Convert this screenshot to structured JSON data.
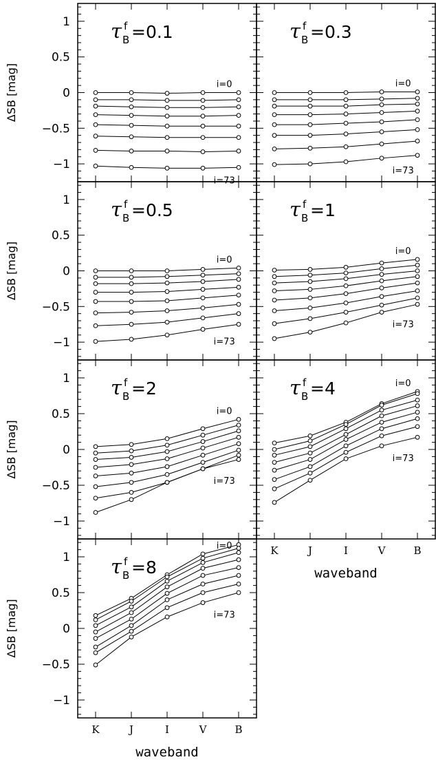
{
  "figure": {
    "ylabel": "ΔSB  [mag]",
    "xlabel": "waveband",
    "tau_symbol": "τ",
    "tau_sub": "B",
    "tau_sup": "f",
    "inclination_top_label": "i=0",
    "inclination_bottom_label": "i=73"
  },
  "chart_data": [
    {
      "type": "line",
      "panel": "tau_0.1",
      "tau_value": "=0.1",
      "categories": [
        "K",
        "J",
        "I",
        "V",
        "B"
      ],
      "ylim": [
        -1.25,
        1.25
      ],
      "yticks": [
        1,
        0.5,
        0,
        -0.5,
        -1
      ],
      "ytick_labels": [
        "1",
        "0.5",
        "0",
        "−0.5",
        "−1"
      ],
      "series": [
        {
          "values": [
            0.0,
            0.0,
            -0.01,
            0.0,
            0.0
          ]
        },
        {
          "values": [
            -0.1,
            -0.1,
            -0.11,
            -0.11,
            -0.1
          ]
        },
        {
          "values": [
            -0.19,
            -0.2,
            -0.21,
            -0.21,
            -0.2
          ]
        },
        {
          "values": [
            -0.31,
            -0.32,
            -0.33,
            -0.33,
            -0.32
          ]
        },
        {
          "values": [
            -0.45,
            -0.46,
            -0.47,
            -0.47,
            -0.47
          ]
        },
        {
          "values": [
            -0.61,
            -0.62,
            -0.63,
            -0.63,
            -0.63
          ]
        },
        {
          "values": [
            -0.81,
            -0.82,
            -0.82,
            -0.83,
            -0.82
          ]
        },
        {
          "values": [
            -1.03,
            -1.05,
            -1.06,
            -1.06,
            -1.05
          ]
        }
      ]
    },
    {
      "type": "line",
      "panel": "tau_0.3",
      "tau_value": "=0.3",
      "categories": [
        "K",
        "J",
        "I",
        "V",
        "B"
      ],
      "ylim": [
        -1.25,
        1.25
      ],
      "yticks": [
        1,
        0.5,
        0,
        -0.5,
        -1
      ],
      "ytick_labels": [
        "1",
        "0.5",
        "0",
        "−0.5",
        "−1"
      ],
      "series": [
        {
          "values": [
            0.0,
            0.0,
            0.0,
            0.01,
            0.01
          ]
        },
        {
          "values": [
            -0.1,
            -0.1,
            -0.1,
            -0.09,
            -0.08
          ]
        },
        {
          "values": [
            -0.19,
            -0.19,
            -0.19,
            -0.17,
            -0.16
          ]
        },
        {
          "values": [
            -0.31,
            -0.31,
            -0.3,
            -0.28,
            -0.26
          ]
        },
        {
          "values": [
            -0.45,
            -0.45,
            -0.43,
            -0.41,
            -0.38
          ]
        },
        {
          "values": [
            -0.6,
            -0.6,
            -0.58,
            -0.55,
            -0.52
          ]
        },
        {
          "values": [
            -0.79,
            -0.78,
            -0.76,
            -0.72,
            -0.68
          ]
        },
        {
          "values": [
            -1.01,
            -1.0,
            -0.97,
            -0.92,
            -0.88
          ]
        }
      ]
    },
    {
      "type": "line",
      "panel": "tau_0.5",
      "tau_value": "=0.5",
      "categories": [
        "K",
        "J",
        "I",
        "V",
        "B"
      ],
      "ylim": [
        -1.25,
        1.25
      ],
      "yticks": [
        1,
        0.5,
        0,
        -0.5,
        -1
      ],
      "ytick_labels": [
        "1",
        "0.5",
        "0",
        "−0.5",
        "−1"
      ],
      "series": [
        {
          "values": [
            0.0,
            0.0,
            0.0,
            0.02,
            0.04
          ]
        },
        {
          "values": [
            -0.09,
            -0.09,
            -0.08,
            -0.06,
            -0.04
          ]
        },
        {
          "values": [
            -0.18,
            -0.18,
            -0.17,
            -0.15,
            -0.12
          ]
        },
        {
          "values": [
            -0.3,
            -0.3,
            -0.29,
            -0.26,
            -0.23
          ]
        },
        {
          "values": [
            -0.43,
            -0.43,
            -0.42,
            -0.38,
            -0.34
          ]
        },
        {
          "values": [
            -0.59,
            -0.58,
            -0.56,
            -0.52,
            -0.47
          ]
        },
        {
          "values": [
            -0.77,
            -0.75,
            -0.72,
            -0.66,
            -0.6
          ]
        },
        {
          "values": [
            -0.99,
            -0.96,
            -0.9,
            -0.82,
            -0.75
          ]
        }
      ]
    },
    {
      "type": "line",
      "panel": "tau_1",
      "tau_value": "=1",
      "categories": [
        "K",
        "J",
        "I",
        "V",
        "B"
      ],
      "ylim": [
        -1.25,
        1.25
      ],
      "yticks": [
        1,
        0.5,
        0,
        -0.5,
        -1
      ],
      "ytick_labels": [
        "1",
        "0.5",
        "0",
        "−0.5",
        "−1"
      ],
      "series": [
        {
          "values": [
            0.01,
            0.02,
            0.05,
            0.11,
            0.16
          ]
        },
        {
          "values": [
            -0.08,
            -0.06,
            -0.03,
            0.03,
            0.08
          ]
        },
        {
          "values": [
            -0.17,
            -0.15,
            -0.11,
            -0.05,
            0.0
          ]
        },
        {
          "values": [
            -0.28,
            -0.26,
            -0.21,
            -0.14,
            -0.08
          ]
        },
        {
          "values": [
            -0.41,
            -0.38,
            -0.32,
            -0.24,
            -0.17
          ]
        },
        {
          "values": [
            -0.56,
            -0.52,
            -0.45,
            -0.36,
            -0.28
          ]
        },
        {
          "values": [
            -0.74,
            -0.67,
            -0.58,
            -0.48,
            -0.38
          ]
        },
        {
          "values": [
            -0.95,
            -0.86,
            -0.73,
            -0.58,
            -0.47
          ]
        }
      ]
    },
    {
      "type": "line",
      "panel": "tau_2",
      "tau_value": "=2",
      "categories": [
        "K",
        "J",
        "I",
        "V",
        "B"
      ],
      "ylim": [
        -1.25,
        1.25
      ],
      "yticks": [
        1,
        0.5,
        0,
        -0.5,
        -1
      ],
      "ytick_labels": [
        "1",
        "0.5",
        "0",
        "−0.5",
        "−1"
      ],
      "series": [
        {
          "values": [
            0.04,
            0.07,
            0.15,
            0.29,
            0.42
          ]
        },
        {
          "values": [
            -0.05,
            -0.02,
            0.06,
            0.2,
            0.34
          ]
        },
        {
          "values": [
            -0.14,
            -0.11,
            -0.03,
            0.11,
            0.26
          ]
        },
        {
          "values": [
            -0.25,
            -0.21,
            -0.13,
            0.02,
            0.17
          ]
        },
        {
          "values": [
            -0.37,
            -0.33,
            -0.24,
            -0.08,
            0.08
          ]
        },
        {
          "values": [
            -0.52,
            -0.46,
            -0.35,
            -0.18,
            -0.01
          ]
        },
        {
          "values": [
            -0.68,
            -0.6,
            -0.46,
            -0.27,
            -0.08
          ]
        },
        {
          "values": [
            -0.88,
            -0.7,
            -0.46,
            -0.27,
            -0.14
          ]
        }
      ]
    },
    {
      "type": "line",
      "panel": "tau_4",
      "tau_value": "=4",
      "categories": [
        "K",
        "J",
        "I",
        "V",
        "B"
      ],
      "ylim": [
        -1.25,
        1.25
      ],
      "yticks": [
        1,
        0.5,
        0,
        -0.5,
        -1
      ],
      "ytick_labels": [
        "1",
        "0.5",
        "0",
        "−0.5",
        "−1"
      ],
      "series": [
        {
          "values": [
            0.09,
            0.19,
            0.38,
            0.64,
            0.81
          ]
        },
        {
          "values": [
            0.0,
            0.12,
            0.35,
            0.62,
            0.78
          ]
        },
        {
          "values": [
            -0.08,
            0.04,
            0.29,
            0.55,
            0.69
          ]
        },
        {
          "values": [
            -0.18,
            -0.05,
            0.21,
            0.47,
            0.61
          ]
        },
        {
          "values": [
            -0.29,
            -0.14,
            0.14,
            0.38,
            0.52
          ]
        },
        {
          "values": [
            -0.42,
            -0.24,
            0.05,
            0.29,
            0.43
          ]
        },
        {
          "values": [
            -0.55,
            -0.33,
            -0.04,
            0.19,
            0.32
          ]
        },
        {
          "values": [
            -0.74,
            -0.43,
            -0.13,
            0.05,
            0.17
          ]
        }
      ]
    },
    {
      "type": "line",
      "panel": "tau_8",
      "tau_value": "=8",
      "categories": [
        "K",
        "J",
        "I",
        "V",
        "B"
      ],
      "ylim": [
        -1.25,
        1.25
      ],
      "yticks": [
        1,
        0.5,
        0,
        -0.5,
        -1
      ],
      "ytick_labels": [
        "1",
        "0.5",
        "0",
        "−0.5",
        "−1"
      ],
      "series": [
        {
          "values": [
            0.18,
            0.42,
            0.75,
            1.04,
            1.17
          ]
        },
        {
          "values": [
            0.12,
            0.38,
            0.72,
            0.98,
            1.12
          ]
        },
        {
          "values": [
            0.04,
            0.3,
            0.66,
            0.92,
            1.06
          ]
        },
        {
          "values": [
            -0.05,
            0.22,
            0.58,
            0.84,
            0.96
          ]
        },
        {
          "values": [
            -0.14,
            0.13,
            0.49,
            0.74,
            0.85
          ]
        },
        {
          "values": [
            -0.26,
            0.04,
            0.4,
            0.62,
            0.74
          ]
        },
        {
          "values": [
            -0.34,
            -0.04,
            0.29,
            0.5,
            0.62
          ]
        },
        {
          "values": [
            -0.51,
            -0.12,
            0.16,
            0.36,
            0.5
          ]
        }
      ]
    }
  ]
}
